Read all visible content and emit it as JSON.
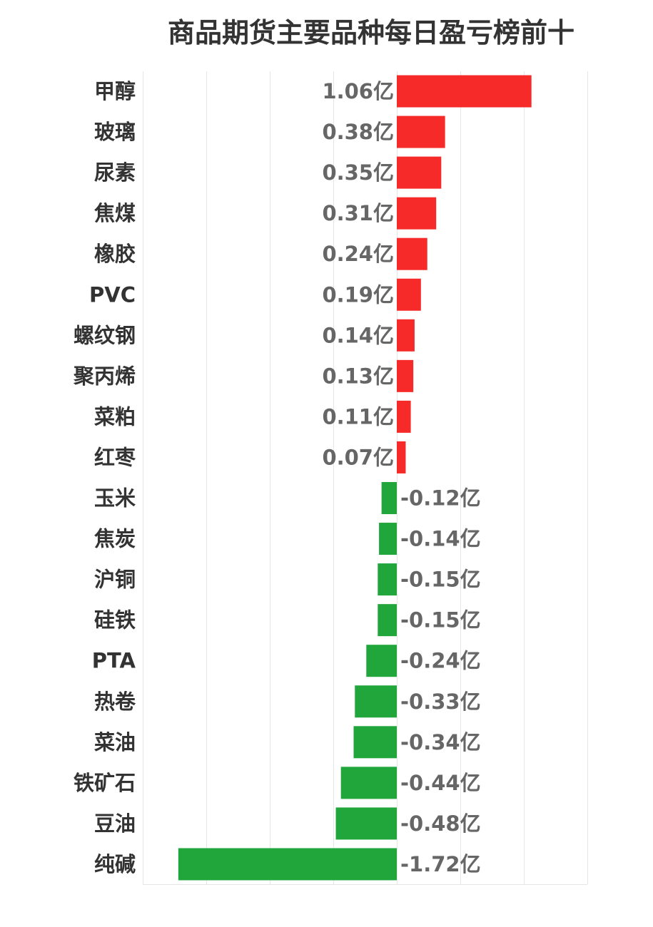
{
  "chart_data": {
    "type": "bar",
    "orientation": "horizontal",
    "title": "商品期货主要品种每日盈亏榜前十",
    "categories": [
      "甲醇",
      "玻璃",
      "尿素",
      "焦煤",
      "橡胶",
      "PVC",
      "螺纹钢",
      "聚丙烯",
      "菜粕",
      "红枣",
      "玉米",
      "焦炭",
      "沪铜",
      "硅铁",
      "PTA",
      "热卷",
      "菜油",
      "铁矿石",
      "豆油",
      "纯碱"
    ],
    "values": [
      1.06,
      0.38,
      0.35,
      0.31,
      0.24,
      0.19,
      0.14,
      0.13,
      0.11,
      0.07,
      -0.12,
      -0.14,
      -0.15,
      -0.15,
      -0.24,
      -0.33,
      -0.34,
      -0.44,
      -0.48,
      -1.72
    ],
    "value_labels": [
      "1.06亿",
      "0.38亿",
      "0.35亿",
      "0.31亿",
      "0.24亿",
      "0.19亿",
      "0.14亿",
      "0.13亿",
      "0.11亿",
      "0.07亿",
      "-0.12亿",
      "-0.14亿",
      "-0.15亿",
      "-0.15亿",
      "-0.24亿",
      "-0.33亿",
      "-0.34亿",
      "-0.44亿",
      "-0.48亿",
      "-1.72亿"
    ],
    "unit": "亿",
    "xlim": [
      -2.0,
      1.5
    ],
    "grid_step": 0.5,
    "grid": true,
    "colors": {
      "positive": "#f62a28",
      "negative": "#21a63c",
      "grid": "#e6e6e6"
    }
  }
}
